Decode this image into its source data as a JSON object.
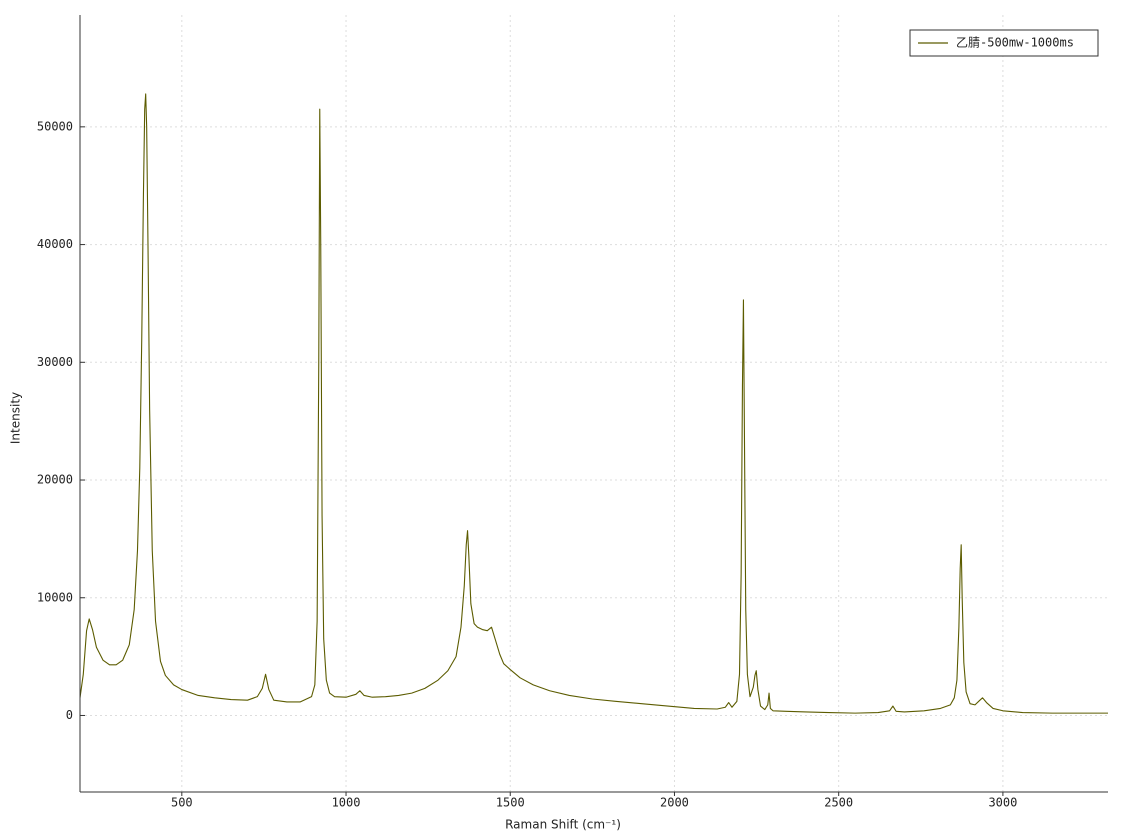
{
  "chart_data": {
    "type": "line",
    "x_label": "Raman Shift (cm⁻¹)",
    "y_label": "Intensity",
    "xlim": [
      190,
      3320
    ],
    "ylim": [
      -6500,
      59500
    ],
    "xticks": [
      500,
      1000,
      1500,
      2000,
      2500,
      3000
    ],
    "yticks": [
      0,
      10000,
      20000,
      30000,
      40000,
      50000
    ],
    "grid": true,
    "legend": "upper right",
    "x": [
      190,
      200,
      210,
      218,
      228,
      240,
      260,
      280,
      300,
      320,
      340,
      355,
      365,
      372,
      378,
      383,
      387,
      390,
      393,
      397,
      402,
      410,
      420,
      435,
      450,
      475,
      500,
      550,
      600,
      650,
      700,
      730,
      745,
      755,
      765,
      780,
      820,
      860,
      895,
      905,
      912,
      917,
      920,
      923,
      927,
      932,
      940,
      950,
      965,
      1000,
      1030,
      1042,
      1055,
      1080,
      1120,
      1160,
      1200,
      1240,
      1280,
      1310,
      1335,
      1350,
      1360,
      1366,
      1370,
      1374,
      1380,
      1390,
      1400,
      1415,
      1430,
      1443,
      1455,
      1468,
      1480,
      1500,
      1530,
      1570,
      1620,
      1680,
      1750,
      1820,
      1900,
      1980,
      2060,
      2130,
      2155,
      2165,
      2175,
      2190,
      2198,
      2203,
      2207,
      2210,
      2213,
      2217,
      2222,
      2230,
      2240,
      2245,
      2249,
      2254,
      2262,
      2275,
      2284,
      2288,
      2292,
      2300,
      2340,
      2400,
      2470,
      2550,
      2620,
      2655,
      2665,
      2675,
      2700,
      2760,
      2810,
      2840,
      2852,
      2860,
      2866,
      2870,
      2873,
      2876,
      2881,
      2888,
      2900,
      2915,
      2930,
      2938,
      2950,
      2970,
      3000,
      3060,
      3150,
      3240,
      3320
    ],
    "series": [
      {
        "name": "乙腈-500mw-1000ms",
        "color": "#5c5c00",
        "values": [
          1500,
          3500,
          7200,
          8200,
          7300,
          5800,
          4700,
          4300,
          4300,
          4700,
          6000,
          9000,
          14000,
          21000,
          32000,
          44000,
          51500,
          52800,
          50000,
          40000,
          26000,
          14000,
          8000,
          4600,
          3400,
          2600,
          2200,
          1700,
          1500,
          1350,
          1300,
          1600,
          2300,
          3500,
          2200,
          1300,
          1150,
          1150,
          1600,
          2600,
          8000,
          30000,
          51500,
          40000,
          17000,
          6500,
          3000,
          1900,
          1600,
          1550,
          1800,
          2100,
          1700,
          1550,
          1600,
          1700,
          1900,
          2300,
          3000,
          3800,
          5000,
          7500,
          11000,
          14500,
          15700,
          13500,
          9500,
          7800,
          7500,
          7300,
          7200,
          7500,
          6400,
          5200,
          4400,
          3900,
          3200,
          2600,
          2100,
          1700,
          1400,
          1200,
          1000,
          800,
          600,
          550,
          700,
          1100,
          700,
          1200,
          3500,
          12000,
          28000,
          35300,
          24000,
          9000,
          3500,
          1600,
          2400,
          3400,
          3800,
          2200,
          800,
          500,
          900,
          1900,
          600,
          400,
          350,
          300,
          250,
          200,
          250,
          400,
          800,
          350,
          300,
          400,
          600,
          900,
          1500,
          3000,
          7500,
          12500,
          14500,
          10000,
          4500,
          2000,
          1000,
          900,
          1300,
          1500,
          1100,
          600,
          400,
          250,
          200,
          200,
          200
        ]
      }
    ]
  }
}
